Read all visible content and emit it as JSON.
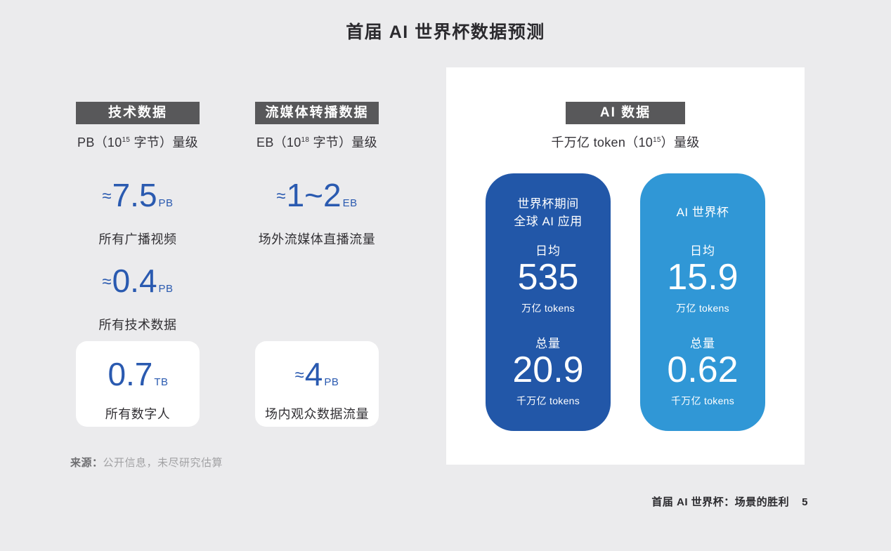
{
  "title": "首届 AI 世界杯数据预测",
  "columns": [
    {
      "header": "技术数据",
      "subtitle": {
        "prefix": "PB（10",
        "sup": "15",
        "suffix": " 字节）量级"
      },
      "stats": [
        {
          "approx": "≈",
          "value": "7.5",
          "unit": "PB",
          "label": "所有广播视频"
        },
        {
          "approx": "≈",
          "value": "0.4",
          "unit": "PB",
          "label": "所有技术数据"
        }
      ],
      "card": {
        "approx": "",
        "value": "0.7",
        "unit": "TB",
        "label": "所有数字人"
      }
    },
    {
      "header": "流媒体转播数据",
      "subtitle": {
        "prefix": "EB（10",
        "sup": "18",
        "suffix": " 字节）量级"
      },
      "stats": [
        {
          "approx": "≈",
          "value": "1~2",
          "unit": "EB",
          "label": "场外流媒体直播流量"
        }
      ],
      "card": {
        "approx": "≈",
        "value": "4",
        "unit": "PB",
        "label": "场内观众数据流量"
      }
    }
  ],
  "ai_panel": {
    "header": "AI 数据",
    "subtitle": {
      "prefix": "千万亿 token（10",
      "sup": "15",
      "suffix": "）量级"
    },
    "cards": [
      {
        "title_line1": "世界杯期间",
        "title_line2": "全球 AI 应用",
        "metrics": [
          {
            "label": "日均",
            "value": "535",
            "unit": "万亿 tokens"
          },
          {
            "label": "总量",
            "value": "20.9",
            "unit": "千万亿 tokens"
          }
        ]
      },
      {
        "title_line1": "AI 世界杯",
        "metrics": [
          {
            "label": "日均",
            "value": "15.9",
            "unit": "万亿 tokens"
          },
          {
            "label": "总量",
            "value": "0.62",
            "unit": "千万亿 tokens"
          }
        ]
      }
    ]
  },
  "source": {
    "label": "来源：",
    "text": "公开信息，未尽研究估算"
  },
  "footer": {
    "text": "首届 AI 世界杯：场景的胜利",
    "page_number": "5"
  },
  "colors": {
    "background": "#ebebed",
    "header_bg": "#58585a",
    "accent_blue": "#2a5ab0",
    "card_dark_blue": "#2257a8",
    "card_light_blue": "#3097d6",
    "panel_white": "#ffffff",
    "text_dark": "#2b2a2e",
    "source_gray": "#a2a2a4"
  }
}
